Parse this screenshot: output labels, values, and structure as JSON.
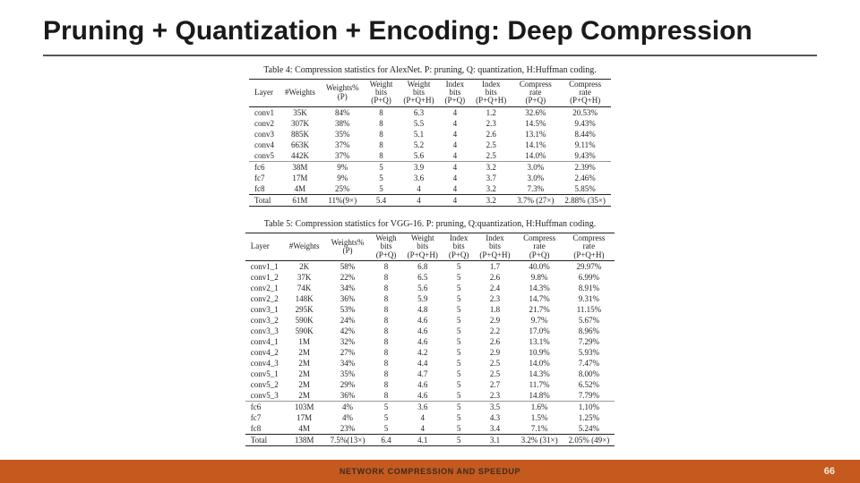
{
  "title": "Pruning + Quantization + Encoding: Deep Compression",
  "footer": {
    "text": "NETWORK COMPRESSION AND SPEEDUP",
    "page": "66",
    "bg": "#c45a1e"
  },
  "table4": {
    "caption": "Table 4: Compression statistics for AlexNet. P: pruning, Q: quantization, H:Huffman coding.",
    "headers": [
      {
        "l1": "Layer"
      },
      {
        "l1": "#Weights"
      },
      {
        "l1": "Weights%",
        "l2": "(P)"
      },
      {
        "l1": "Weight",
        "l2": "bits",
        "l3": "(P+Q)"
      },
      {
        "l1": "Weight",
        "l2": "bits",
        "l3": "(P+Q+H)"
      },
      {
        "l1": "Index",
        "l2": "bits",
        "l3": "(P+Q)"
      },
      {
        "l1": "Index",
        "l2": "bits",
        "l3": "(P+Q+H)"
      },
      {
        "l1": "Compress",
        "l2": "rate",
        "l3": "(P+Q)"
      },
      {
        "l1": "Compress",
        "l2": "rate",
        "l3": "(P+Q+H)"
      }
    ],
    "rows": [
      [
        "conv1",
        "35K",
        "84%",
        "8",
        "6.3",
        "4",
        "1.2",
        "32.6%",
        "20.53%"
      ],
      [
        "conv2",
        "307K",
        "38%",
        "8",
        "5.5",
        "4",
        "2.3",
        "14.5%",
        "9.43%"
      ],
      [
        "conv3",
        "885K",
        "35%",
        "8",
        "5.1",
        "4",
        "2.6",
        "13.1%",
        "8.44%"
      ],
      [
        "conv4",
        "663K",
        "37%",
        "8",
        "5.2",
        "4",
        "2.5",
        "14.1%",
        "9.11%"
      ],
      [
        "conv5",
        "442K",
        "37%",
        "8",
        "5.6",
        "4",
        "2.5",
        "14.0%",
        "9.43%"
      ],
      [
        "fc6",
        "38M",
        "9%",
        "5",
        "3.9",
        "4",
        "3.2",
        "3.0%",
        "2.39%"
      ],
      [
        "fc7",
        "17M",
        "9%",
        "5",
        "3.6",
        "4",
        "3.7",
        "3.0%",
        "2.46%"
      ],
      [
        "fc8",
        "4M",
        "25%",
        "5",
        "4",
        "4",
        "3.2",
        "7.3%",
        "5.85%"
      ]
    ],
    "total": [
      "Total",
      "61M",
      "11%(9×)",
      "5.4",
      "4",
      "4",
      "3.2",
      "3.7% (27×)",
      "2.88% (35×)"
    ]
  },
  "table5": {
    "caption": "Table 5: Compression statistics for VGG-16. P: pruning, Q:quantization, H:Huffman coding.",
    "headers": [
      {
        "l1": "Layer"
      },
      {
        "l1": "#Weights"
      },
      {
        "l1": "Weights%",
        "l2": "(P)"
      },
      {
        "l1": "Weigh",
        "l2": "bits",
        "l3": "(P+Q)"
      },
      {
        "l1": "Weight",
        "l2": "bits",
        "l3": "(P+Q+H)"
      },
      {
        "l1": "Index",
        "l2": "bits",
        "l3": "(P+Q)"
      },
      {
        "l1": "Index",
        "l2": "bits",
        "l3": "(P+Q+H)"
      },
      {
        "l1": "Compress",
        "l2": "rate",
        "l3": "(P+Q)"
      },
      {
        "l1": "Compress",
        "l2": "rate",
        "l3": "(P+Q+H)"
      }
    ],
    "rows": [
      [
        "conv1_1",
        "2K",
        "58%",
        "8",
        "6.8",
        "5",
        "1.7",
        "40.0%",
        "29.97%"
      ],
      [
        "conv1_2",
        "37K",
        "22%",
        "8",
        "6.5",
        "5",
        "2.6",
        "9.8%",
        "6.99%"
      ],
      [
        "conv2_1",
        "74K",
        "34%",
        "8",
        "5.6",
        "5",
        "2.4",
        "14.3%",
        "8.91%"
      ],
      [
        "conv2_2",
        "148K",
        "36%",
        "8",
        "5.9",
        "5",
        "2.3",
        "14.7%",
        "9.31%"
      ],
      [
        "conv3_1",
        "295K",
        "53%",
        "8",
        "4.8",
        "5",
        "1.8",
        "21.7%",
        "11.15%"
      ],
      [
        "conv3_2",
        "590K",
        "24%",
        "8",
        "4.6",
        "5",
        "2.9",
        "9.7%",
        "5.67%"
      ],
      [
        "conv3_3",
        "590K",
        "42%",
        "8",
        "4.6",
        "5",
        "2.2",
        "17.0%",
        "8.96%"
      ],
      [
        "conv4_1",
        "1M",
        "32%",
        "8",
        "4.6",
        "5",
        "2.6",
        "13.1%",
        "7.29%"
      ],
      [
        "conv4_2",
        "2M",
        "27%",
        "8",
        "4.2",
        "5",
        "2.9",
        "10.9%",
        "5.93%"
      ],
      [
        "conv4_3",
        "2M",
        "34%",
        "8",
        "4.4",
        "5",
        "2.5",
        "14.0%",
        "7.47%"
      ],
      [
        "conv5_1",
        "2M",
        "35%",
        "8",
        "4.7",
        "5",
        "2.5",
        "14.3%",
        "8.00%"
      ],
      [
        "conv5_2",
        "2M",
        "29%",
        "8",
        "4.6",
        "5",
        "2.7",
        "11.7%",
        "6.52%"
      ],
      [
        "conv5_3",
        "2M",
        "36%",
        "8",
        "4.6",
        "5",
        "2.3",
        "14.8%",
        "7.79%"
      ],
      [
        "fc6",
        "103M",
        "4%",
        "5",
        "3.6",
        "5",
        "3.5",
        "1.6%",
        "1.10%"
      ],
      [
        "fc7",
        "17M",
        "4%",
        "5",
        "4",
        "5",
        "4.3",
        "1.5%",
        "1.25%"
      ],
      [
        "fc8",
        "4M",
        "23%",
        "5",
        "4",
        "5",
        "3.4",
        "7.1%",
        "5.24%"
      ]
    ],
    "total": [
      "Total",
      "138M",
      "7.5%(13×)",
      "6.4",
      "4.1",
      "5",
      "3.1",
      "3.2% (31×)",
      "2.05% (49×)"
    ]
  }
}
